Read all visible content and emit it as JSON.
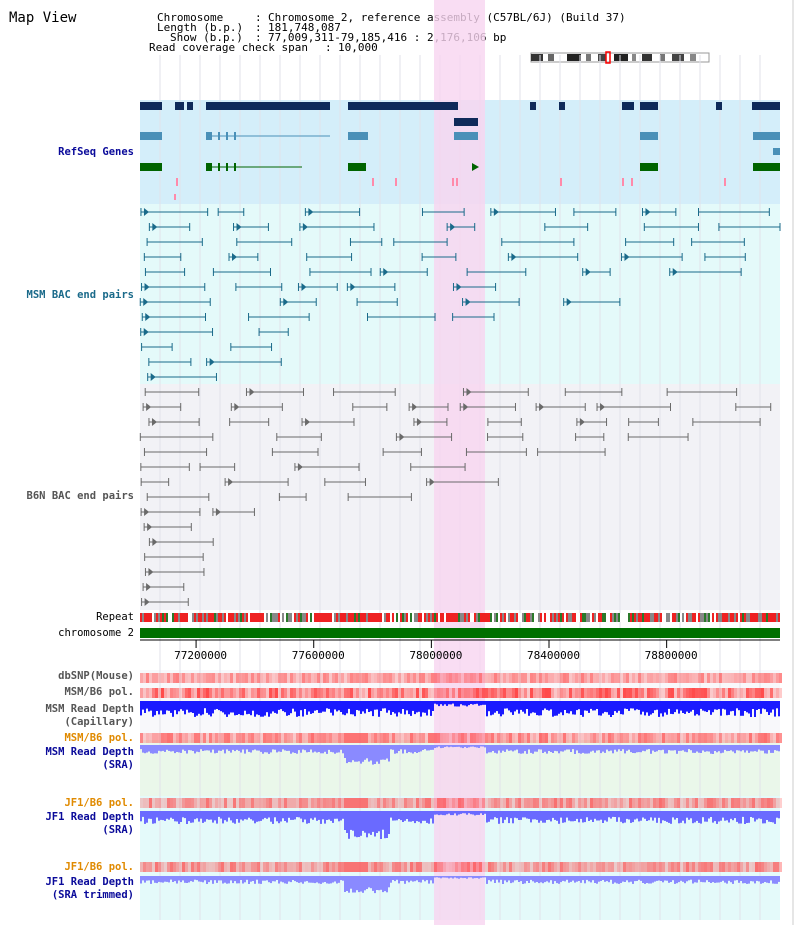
{
  "view": {
    "title": "Map View",
    "chromosome_key": "Chromosome",
    "chromosome_value": "Chromosome 2, reference assembly (C57BL/6J) (Build 37)",
    "length_key": "Length (b.p.)",
    "length_value": "181,748,087",
    "show_key": "Show (b.p.)",
    "show_value": "77,009,311-79,185,416 : 2,176,106 bp",
    "coverage_key": "Read coverage check span",
    "coverage_value": "10,000"
  },
  "tracks": {
    "refseq": "RefSeq Genes",
    "msm_bac": "MSM BAC end pairs",
    "b6n_bac": "B6N BAC end pairs",
    "repeat": "Repeat",
    "chromosome": "chromosome 2",
    "dbsnp": "dbSNP(Mouse)",
    "msm_b6_pol_1": "MSM/B6 pol.",
    "msm_depth_cap_1": "MSM Read Depth",
    "msm_depth_cap_2": "(Capillary)",
    "msm_b6_pol_2": "MSM/B6 pol.",
    "msm_depth_sra_1": "MSM Read Depth",
    "msm_depth_sra_2": "(SRA)",
    "jf1_b6_pol_1": "JF1/B6 pol.",
    "jf1_depth_sra_1": "JF1 Read Depth",
    "jf1_depth_sra_2": "(SRA)",
    "jf1_b6_pol_2": "JF1/B6 pol.",
    "jf1_depth_trim_1": "JF1 Read Depth",
    "jf1_depth_trim_2": "(SRA trimmed)"
  },
  "ruler": {
    "ticks": [
      {
        "pos": 77200000,
        "label": "77200000"
      },
      {
        "pos": 77600000,
        "label": "77600000"
      },
      {
        "pos": 78000000,
        "label": "78000000"
      },
      {
        "pos": 78400000,
        "label": "78400000"
      },
      {
        "pos": 78800000,
        "label": "78800000"
      }
    ],
    "range_start": 77009311,
    "range_end": 79185416
  },
  "colors": {
    "refseq_bg": "#d4eefa",
    "msm_bac_bg": "#e4fafa",
    "b6n_bac_bg": "#f2f2f6",
    "highlight": "#f8d4f0",
    "gene_dark": "#0f2a5a",
    "gene_mid": "#4a90b8",
    "gene_green": "#006400",
    "msm_bac": "#1a6a8a",
    "b6n_bac": "#6a6a6a",
    "chromosome": "#007000",
    "depth_blue": "#1a1aff",
    "depth_light": "#8a8aff",
    "pol_red": "#ff4040",
    "label_blue": "#0a0a9a",
    "label_orange": "#e08a00",
    "label_teal": "#1a6a8a",
    "label_gray": "#555555"
  }
}
